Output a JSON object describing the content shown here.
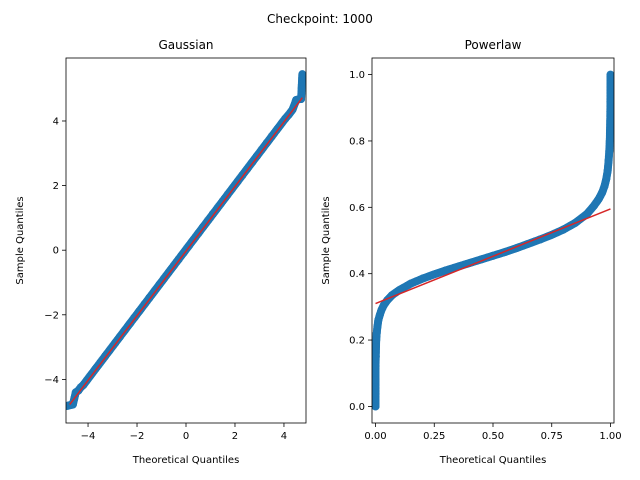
{
  "suptitle": "Checkpoint: 1000",
  "chart_data": [
    {
      "type": "scatter",
      "title": "Gaussian",
      "xlabel": "Theoretical Quantiles",
      "ylabel": "Sample Quantiles",
      "xlim": [
        -4.9,
        4.9
      ],
      "ylim": [
        -5.35,
        5.95
      ],
      "xticks": [
        -4,
        -2,
        0,
        2,
        4
      ],
      "yticks": [
        -4,
        -2,
        0,
        2,
        4
      ],
      "xtick_labels": [
        "−4",
        "−2",
        "0",
        "2",
        "4"
      ],
      "ytick_labels": [
        "−4",
        "−2",
        "0",
        "2",
        "4"
      ],
      "marker_color": "#1f77b4",
      "line_color": "#d62728",
      "reference_line": {
        "x": [
          -4.75,
          4.75
        ],
        "y": [
          -4.78,
          4.72
        ]
      },
      "series": [
        {
          "x": [
            -4.85,
            -4.75,
            -4.62,
            -4.5,
            -4.4,
            -4.3,
            -4.2,
            -4.05,
            -3.9,
            -3.7,
            -3.5,
            -3.3,
            -3.1,
            -2.9,
            -2.7,
            -2.5,
            -2.3,
            -2.1,
            -1.9,
            -1.7,
            -1.5,
            -1.3,
            -1.1,
            -0.9,
            -0.7,
            -0.5,
            -0.3,
            -0.1,
            0.1,
            0.3,
            0.5,
            0.7,
            0.9,
            1.1,
            1.3,
            1.5,
            1.7,
            1.9,
            2.1,
            2.3,
            2.5,
            2.7,
            2.9,
            3.1,
            3.3,
            3.5,
            3.7,
            3.9,
            4.05,
            4.2,
            4.35,
            4.5,
            4.6,
            4.7,
            4.75
          ],
          "y": [
            -4.82,
            -4.8,
            -4.78,
            -4.4,
            -4.35,
            -4.25,
            -4.18,
            -4.03,
            -3.88,
            -3.68,
            -3.48,
            -3.28,
            -3.08,
            -2.88,
            -2.68,
            -2.48,
            -2.28,
            -2.08,
            -1.88,
            -1.68,
            -1.48,
            -1.28,
            -1.08,
            -0.88,
            -0.68,
            -0.48,
            -0.28,
            -0.08,
            0.12,
            0.32,
            0.52,
            0.72,
            0.92,
            1.12,
            1.32,
            1.52,
            1.72,
            1.92,
            2.12,
            2.32,
            2.52,
            2.72,
            2.92,
            3.12,
            3.32,
            3.52,
            3.72,
            3.92,
            4.07,
            4.2,
            4.35,
            4.65,
            4.67,
            4.68,
            5.45
          ]
        }
      ]
    },
    {
      "type": "scatter",
      "title": "Powerlaw",
      "xlabel": "Theoretical Quantiles",
      "ylabel": "Sample Quantiles",
      "xlim": [
        -0.015,
        1.015
      ],
      "ylim": [
        -0.05,
        1.05
      ],
      "xticks": [
        0.0,
        0.25,
        0.5,
        0.75,
        1.0
      ],
      "yticks": [
        0.0,
        0.2,
        0.4,
        0.6,
        0.8,
        1.0
      ],
      "xtick_labels": [
        "0.00",
        "0.25",
        "0.50",
        "0.75",
        "1.00"
      ],
      "ytick_labels": [
        "0.0",
        "0.2",
        "0.4",
        "0.6",
        "0.8",
        "1.0"
      ],
      "marker_color": "#1f77b4",
      "line_color": "#d62728",
      "reference_line": {
        "x": [
          0.0,
          1.0
        ],
        "y": [
          0.31,
          0.595
        ]
      },
      "series": [
        {
          "x": [
            0.0,
            0.0,
            0.0,
            0.0,
            0.001,
            0.002,
            0.003,
            0.005,
            0.008,
            0.012,
            0.018,
            0.025,
            0.035,
            0.05,
            0.07,
            0.1,
            0.15,
            0.2,
            0.25,
            0.3,
            0.35,
            0.4,
            0.45,
            0.5,
            0.55,
            0.6,
            0.65,
            0.7,
            0.75,
            0.8,
            0.85,
            0.9,
            0.93,
            0.95,
            0.965,
            0.975,
            0.982,
            0.988,
            0.992,
            0.995,
            0.997,
            0.998,
            0.999,
            0.9995,
            0.9998,
            1.0
          ],
          "y": [
            0.0,
            0.04,
            0.08,
            0.12,
            0.15,
            0.18,
            0.2,
            0.22,
            0.24,
            0.26,
            0.275,
            0.29,
            0.305,
            0.32,
            0.335,
            0.35,
            0.37,
            0.385,
            0.398,
            0.41,
            0.421,
            0.432,
            0.443,
            0.454,
            0.465,
            0.477,
            0.49,
            0.503,
            0.517,
            0.533,
            0.553,
            0.58,
            0.605,
            0.625,
            0.645,
            0.665,
            0.685,
            0.71,
            0.74,
            0.77,
            0.8,
            0.83,
            0.86,
            0.89,
            0.92,
            1.0
          ]
        }
      ]
    }
  ]
}
